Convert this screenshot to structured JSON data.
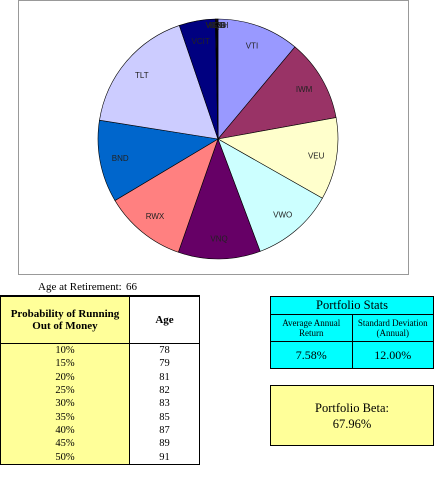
{
  "chart_data": {
    "type": "pie",
    "title": "",
    "slices": [
      {
        "label": "VTI",
        "value": 12.5,
        "color": "#9999ff"
      },
      {
        "label": "IWM",
        "value": 12.5,
        "color": "#993366"
      },
      {
        "label": "VEU",
        "value": 12.5,
        "color": "#ffffcc"
      },
      {
        "label": "VWO",
        "value": 12.5,
        "color": "#ccffff"
      },
      {
        "label": "VNQ",
        "value": 12.5,
        "color": "#660066"
      },
      {
        "label": "RWX",
        "value": 12.5,
        "color": "#ff8080"
      },
      {
        "label": "BND",
        "value": 12.5,
        "color": "#0066cc"
      },
      {
        "label": "TLT",
        "value": 19.5,
        "color": "#ccccff"
      },
      {
        "label": "VCIT",
        "value": 5.5,
        "color": "#000080"
      },
      {
        "label": "VTEB",
        "value": 0.1,
        "color": "#ff00ff"
      },
      {
        "label": "AGG",
        "value": 0.1,
        "color": "#ffff00"
      },
      {
        "label": "VGSH",
        "value": 0.1,
        "color": "#00ffff"
      },
      {
        "label": "LQD",
        "value": 0.1,
        "color": "#800080"
      }
    ]
  },
  "age_retirement": {
    "label": "Age at Retirement:",
    "value": "66"
  },
  "prob_table": {
    "header_prob": "Probability of Running Out of Money",
    "header_age": "Age",
    "rows": [
      {
        "prob": "10%",
        "age": "78"
      },
      {
        "prob": "15%",
        "age": "79"
      },
      {
        "prob": "20%",
        "age": "81"
      },
      {
        "prob": "25%",
        "age": "82"
      },
      {
        "prob": "30%",
        "age": "83"
      },
      {
        "prob": "35%",
        "age": "85"
      },
      {
        "prob": "40%",
        "age": "87"
      },
      {
        "prob": "45%",
        "age": "89"
      },
      {
        "prob": "50%",
        "age": "91"
      }
    ]
  },
  "stats": {
    "title": "Portfolio Stats",
    "head_return": "Average Annual Return",
    "head_sd": "Standard Deviation (Annual)",
    "val_return": "7.58%",
    "val_sd": "12.00%"
  },
  "beta": {
    "label": "Portfolio Beta:",
    "value": "67.96%"
  }
}
